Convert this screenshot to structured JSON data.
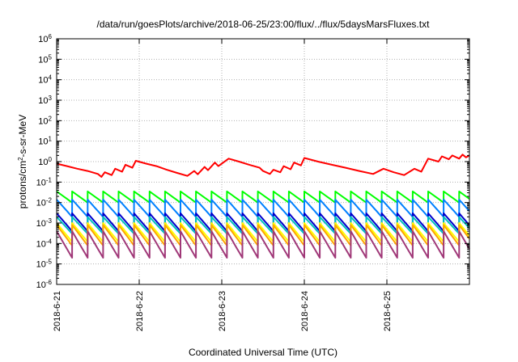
{
  "chart_data": {
    "type": "line",
    "title": "/data/run/goesPlots/archive/2018-06-25/23:00/flux/../flux/5daysMarsFluxes.txt",
    "xlabel": "Coordinated Universal Time (UTC)",
    "ylabel": {
      "before": "protons/cm",
      "sup": "2",
      "after": "-s-sr-MeV"
    },
    "x_range": [
      "2018-06-21T00:00",
      "2018-06-26T00:00"
    ],
    "ylim": [
      1e-06,
      1000000.0
    ],
    "yscale": "log",
    "grid": true,
    "legend": "none",
    "x_ticks": [
      "2018-6-21",
      "2018-6-22",
      "2018-6-23",
      "2018-6-24",
      "2018-6-25"
    ],
    "y_ticks": [
      {
        "base": "10",
        "exp": "-6"
      },
      {
        "base": "10",
        "exp": "-5"
      },
      {
        "base": "10",
        "exp": "-4"
      },
      {
        "base": "10",
        "exp": "-3"
      },
      {
        "base": "10",
        "exp": "-2"
      },
      {
        "base": "10",
        "exp": "-1"
      },
      {
        "base": "10",
        "exp": "0"
      },
      {
        "base": "10",
        "exp": "1"
      },
      {
        "base": "10",
        "exp": "2"
      },
      {
        "base": "10",
        "exp": "3"
      },
      {
        "base": "10",
        "exp": "4"
      },
      {
        "base": "10",
        "exp": "5"
      },
      {
        "base": "10",
        "exp": "6"
      }
    ],
    "series": [
      {
        "color": "#ff0000",
        "x": [
          "2018-06-21T00:00",
          "2018-06-21T03:00",
          "2018-06-21T06:00",
          "2018-06-21T09:00",
          "2018-06-21T12:00",
          "2018-06-21T13:00",
          "2018-06-21T14:00",
          "2018-06-21T16:00",
          "2018-06-21T17:00",
          "2018-06-21T19:00",
          "2018-06-21T20:00",
          "2018-06-21T22:00",
          "2018-06-21T23:00",
          "2018-06-22T02:00",
          "2018-06-22T05:00",
          "2018-06-22T08:00",
          "2018-06-22T11:00",
          "2018-06-22T14:00",
          "2018-06-22T16:00",
          "2018-06-22T17:00",
          "2018-06-22T19:00",
          "2018-06-22T20:00",
          "2018-06-22T22:00",
          "2018-06-22T23:00",
          "2018-06-23T02:00",
          "2018-06-23T05:00",
          "2018-06-23T08:00",
          "2018-06-23T11:00",
          "2018-06-23T12:00",
          "2018-06-23T14:00",
          "2018-06-23T15:00",
          "2018-06-23T17:00",
          "2018-06-23T18:00",
          "2018-06-23T20:00",
          "2018-06-23T21:00",
          "2018-06-23T23:00",
          "2018-06-24T00:00",
          "2018-06-24T04:00",
          "2018-06-24T08:00",
          "2018-06-24T12:00",
          "2018-06-24T16:00",
          "2018-06-24T20:00",
          "2018-06-24T23:00",
          "2018-06-25T02:00",
          "2018-06-25T05:00",
          "2018-06-25T08:00",
          "2018-06-25T10:00",
          "2018-06-25T12:00",
          "2018-06-25T15:00",
          "2018-06-25T16:00",
          "2018-06-25T18:00",
          "2018-06-25T19:00",
          "2018-06-25T21:00",
          "2018-06-25T22:00",
          "2018-06-25T23:00",
          "2018-06-26T00:00"
        ],
        "y": [
          0.8,
          0.6,
          0.45,
          0.35,
          0.25,
          0.18,
          0.3,
          0.22,
          0.45,
          0.32,
          0.7,
          0.5,
          1.1,
          0.8,
          0.6,
          0.4,
          0.28,
          0.2,
          0.35,
          0.24,
          0.55,
          0.38,
          0.9,
          0.6,
          1.4,
          1.0,
          0.7,
          0.5,
          0.35,
          0.25,
          0.4,
          0.3,
          0.6,
          0.42,
          0.9,
          0.65,
          1.5,
          1.0,
          0.7,
          0.5,
          0.35,
          0.25,
          0.45,
          0.3,
          0.22,
          0.45,
          0.32,
          1.4,
          1.0,
          1.8,
          1.3,
          2.0,
          1.4,
          2.2,
          1.6,
          2.0
        ]
      },
      {
        "color": "#00ff00",
        "x_start": "2018-06-21T00:00",
        "period_hours": 4.5,
        "y_peak": 0.035,
        "y_trough": 0.01
      },
      {
        "color": "#0080ff",
        "x_start": "2018-06-21T00:00",
        "period_hours": 4.5,
        "y_peak": 0.014,
        "y_trough": 0.002
      },
      {
        "color": "#0000cc",
        "x_start": "2018-06-21T00:00",
        "period_hours": 4.5,
        "y_peak": 0.003,
        "y_trough": 0.0004
      },
      {
        "color": "#00c0c0",
        "x_start": "2018-06-21T00:00",
        "period_hours": 4.5,
        "y_peak": 0.002,
        "y_trough": 0.0003
      },
      {
        "color": "#ffff00",
        "x_start": "2018-06-21T00:00",
        "period_hours": 4.5,
        "y_peak": 0.001,
        "y_trough": 0.00012
      },
      {
        "color": "#ffa500",
        "x_start": "2018-06-21T00:00",
        "period_hours": 4.5,
        "y_peak": 0.0008,
        "y_trough": 8e-05
      },
      {
        "color": "#a03878",
        "x_start": "2018-06-21T00:00",
        "period_hours": 4.5,
        "y_peak": 0.0004,
        "y_trough": 2e-05
      }
    ]
  }
}
